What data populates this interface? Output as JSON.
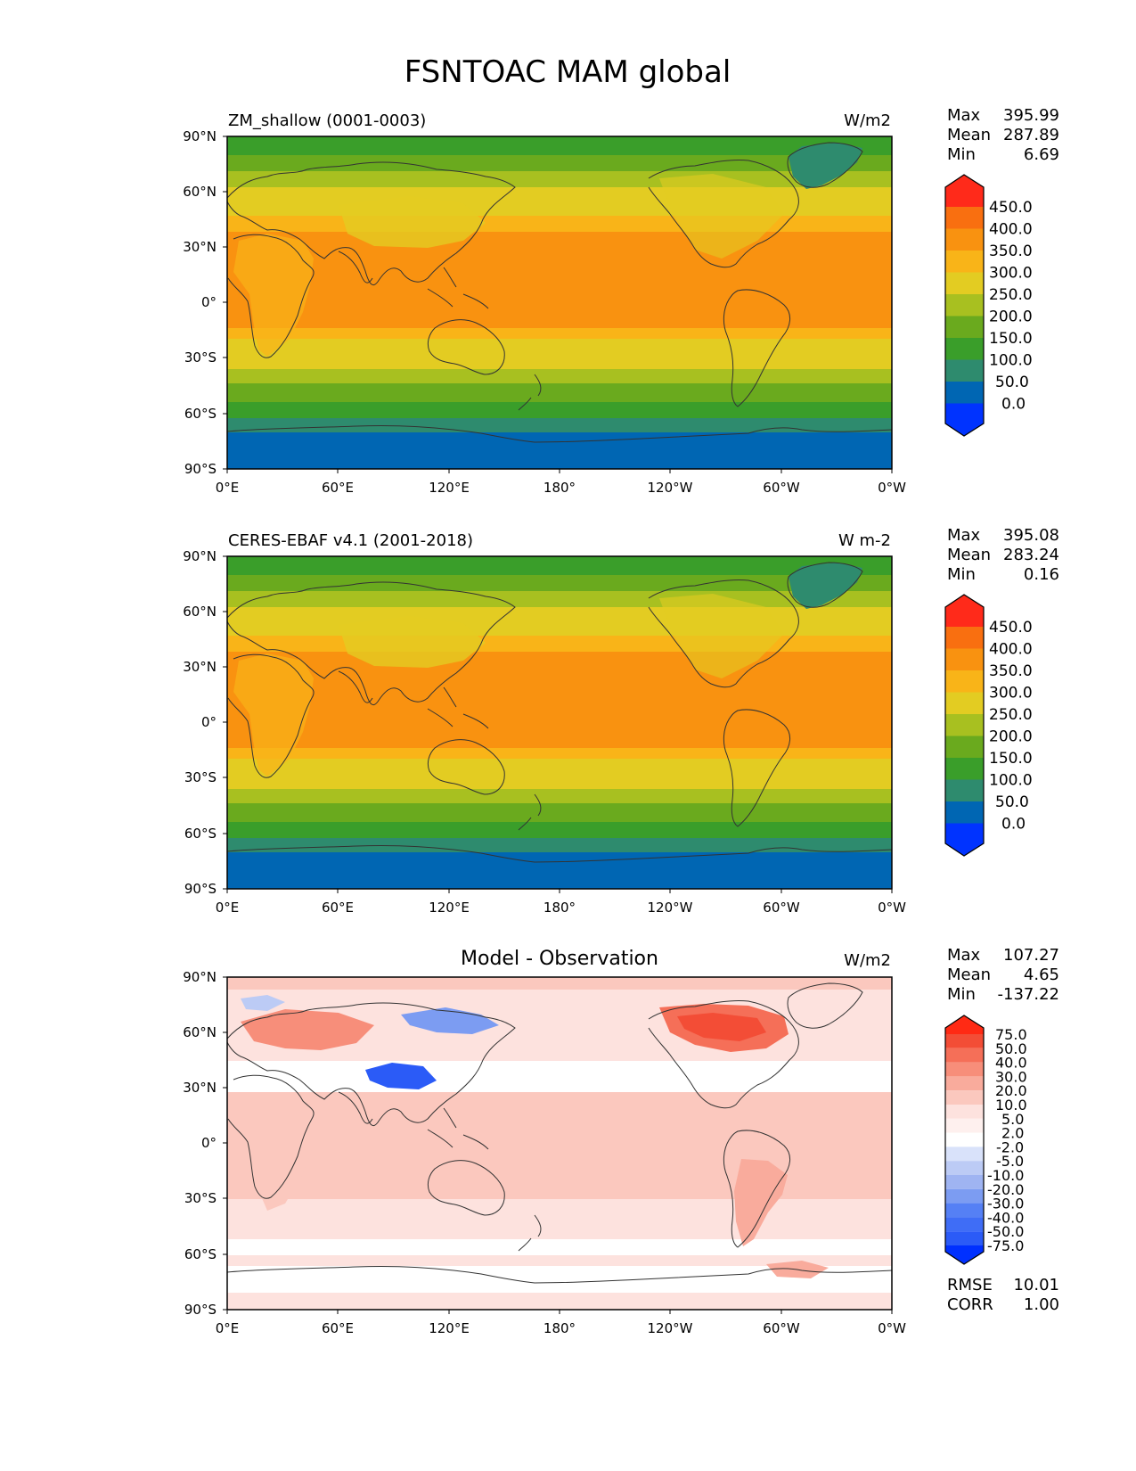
{
  "title": "FSNTOAC MAM global",
  "lon_ticks": [
    "0°E",
    "60°E",
    "120°E",
    "180°",
    "120°W",
    "60°W",
    "0°W"
  ],
  "lat_ticks": [
    "90°N",
    "60°N",
    "30°N",
    "0°",
    "30°S",
    "60°S",
    "90°S"
  ],
  "colors": {
    "abs_levels": [
      "#0033ff",
      "#0066b3",
      "#2e8b6e",
      "#3a9e2a",
      "#6aaa1e",
      "#a8c020",
      "#e3cc22",
      "#f9b418",
      "#f99210",
      "#f96f10",
      "#ff2a1a"
    ],
    "diff_levels": [
      "#0030ff",
      "#2b5bf7",
      "#5580f5",
      "#7c9cf2",
      "#9fb4f2",
      "#bccbf5",
      "#d9e2fa",
      "#ffffff",
      "#fde2de",
      "#fbc8be",
      "#f9ab9c",
      "#f78e7a",
      "#f56f58",
      "#f34d36",
      "#ff2a14"
    ]
  },
  "panels": [
    {
      "id": "test",
      "left_label": "ZM_shallow (0001-0003)",
      "right_label": "W/m2",
      "stats": [
        {
          "label": "Max",
          "value": "395.99"
        },
        {
          "label": "Mean",
          "value": "287.89"
        },
        {
          "label": "Min",
          "value": "6.69"
        }
      ],
      "colorbar_ticks": [
        "450.0",
        "400.0",
        "350.0",
        "300.0",
        "250.0",
        "200.0",
        "150.0",
        "100.0",
        "50.0",
        "0.0"
      ]
    },
    {
      "id": "ref",
      "left_label": "CERES-EBAF v4.1 (2001-2018)",
      "right_label": "W m-2",
      "stats": [
        {
          "label": "Max",
          "value": "395.08"
        },
        {
          "label": "Mean",
          "value": "283.24"
        },
        {
          "label": "Min",
          "value": "0.16"
        }
      ],
      "colorbar_ticks": [
        "450.0",
        "400.0",
        "350.0",
        "300.0",
        "250.0",
        "200.0",
        "150.0",
        "100.0",
        "50.0",
        "0.0"
      ]
    },
    {
      "id": "diff",
      "center_title": "Model - Observation",
      "right_label": "W/m2",
      "stats": [
        {
          "label": "Max",
          "value": "107.27"
        },
        {
          "label": "Mean",
          "value": "4.65"
        },
        {
          "label": "Min",
          "value": "-137.22"
        }
      ],
      "colorbar_ticks": [
        "75.0",
        "50.0",
        "40.0",
        "30.0",
        "20.0",
        "10.0",
        "5.0",
        "2.0",
        "-2.0",
        "-5.0",
        "-10.0",
        "-20.0",
        "-30.0",
        "-40.0",
        "-50.0",
        "-75.0"
      ],
      "bottom_stats": [
        {
          "label": "RMSE",
          "value": "10.01"
        },
        {
          "label": "CORR",
          "value": "1.00"
        }
      ]
    }
  ]
}
